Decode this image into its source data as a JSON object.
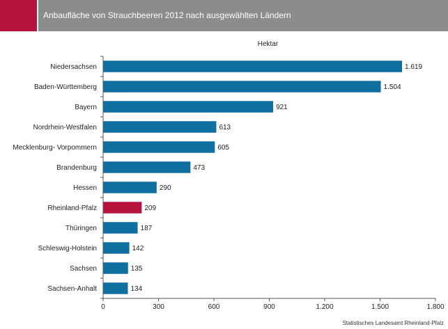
{
  "header": {
    "title": "Anbaufläche von Strauchbeeren 2012 nach ausgewählten Ländern",
    "accent_color": "#b5123d",
    "bar_color": "#8c8c8c"
  },
  "source": "Statistisches Landesamt Rheinland-Pfalz",
  "colors": {
    "bar": "#0f6fa0",
    "highlight": "#b5123d"
  },
  "chart_data": {
    "type": "bar",
    "orientation": "horizontal",
    "title": "Anbaufläche von Strauchbeeren 2012 nach ausgewählten Ländern",
    "unit_label": "Hektar",
    "categories": [
      "Niedersachsen",
      "Baden-Württemberg",
      "Bayern",
      "Nordrhein-Westfalen",
      "Mecklenburg- Vorpommern",
      "Brandenburg",
      "Hessen",
      "Rheinland-Pfalz",
      "Thüringen",
      "Schleswig-Holstein",
      "Sachsen",
      "Sachsen-Anhalt"
    ],
    "values": [
      1619,
      1504,
      921,
      613,
      605,
      473,
      290,
      209,
      187,
      142,
      135,
      134
    ],
    "value_labels": [
      "1.619",
      "1.504",
      "921",
      "613",
      "605",
      "473",
      "290",
      "209",
      "187",
      "142",
      "135",
      "134"
    ],
    "highlight_category": "Rheinland-Pfalz",
    "xlim": [
      0,
      1800
    ],
    "x_ticks": [
      0,
      300,
      600,
      900,
      1200,
      1500,
      1800
    ],
    "x_tick_labels": [
      "0",
      "300",
      "600",
      "900",
      "1.200",
      "1.500",
      "1.800"
    ],
    "grid": false,
    "legend": "none"
  }
}
